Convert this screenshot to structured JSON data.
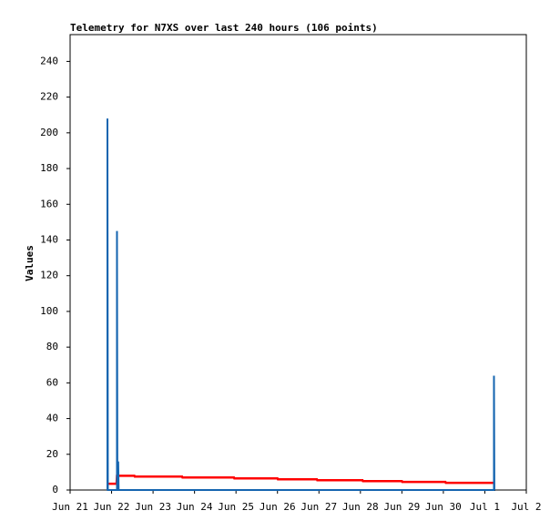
{
  "chart_data": {
    "type": "line",
    "title": "Telemetry for N7XS over last 240 hours (106 points)",
    "y_label": "Values",
    "xlim": [
      21,
      32
    ],
    "xticks": [
      {
        "value": 21,
        "label": "Jun 21"
      },
      {
        "value": 22,
        "label": "Jun 22"
      },
      {
        "value": 23,
        "label": "Jun 23"
      },
      {
        "value": 24,
        "label": "Jun 24"
      },
      {
        "value": 25,
        "label": "Jun 25"
      },
      {
        "value": 26,
        "label": "Jun 26"
      },
      {
        "value": 27,
        "label": "Jun 27"
      },
      {
        "value": 28,
        "label": "Jun 28"
      },
      {
        "value": 29,
        "label": "Jun 29"
      },
      {
        "value": 30,
        "label": "Jun 30"
      },
      {
        "value": 31,
        "label": "Jul 1"
      },
      {
        "value": 32,
        "label": "Jul 2"
      }
    ],
    "ylim": [
      0,
      255
    ],
    "yticks": [
      0,
      20,
      40,
      60,
      80,
      100,
      120,
      140,
      160,
      180,
      200,
      220,
      240
    ],
    "grid": false,
    "series": [
      {
        "color": "#000000",
        "x": [
          21.9,
          31.25
        ],
        "values": [
          0,
          0
        ]
      },
      {
        "color": "#ff0000",
        "x": [
          21.92,
          22.12,
          22.13,
          22.55,
          22.56,
          23.7,
          23.71,
          24.95,
          24.96,
          26.0,
          26.01,
          26.95,
          26.96,
          28.05,
          28.06,
          29.0,
          29.01,
          30.05,
          30.06,
          31.2
        ],
        "values": [
          3.5,
          3.5,
          8,
          8,
          7.5,
          7.5,
          7,
          7,
          6.5,
          6.5,
          6,
          6,
          5.5,
          5.5,
          5,
          5,
          4.5,
          4.5,
          4,
          4
        ]
      },
      {
        "color": "#1565b0",
        "x": [
          21.9,
          21.9,
          21.91,
          22.13,
          22.13,
          22.14,
          22.16,
          22.16,
          22.17,
          31.22,
          31.22,
          31.23
        ],
        "values": [
          0,
          208,
          0,
          0,
          145,
          0,
          0,
          16,
          0,
          0,
          64,
          0
        ]
      }
    ]
  }
}
